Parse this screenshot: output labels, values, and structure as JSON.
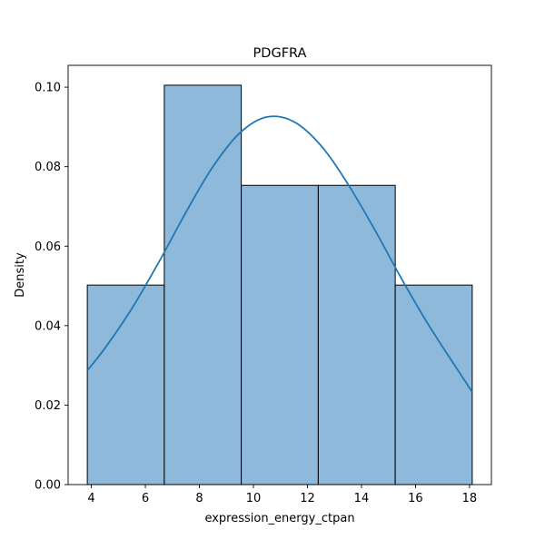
{
  "chart_data": {
    "type": "bar",
    "title": "PDGFRA",
    "xlabel": "expression_energy_ctpan",
    "ylabel": "Density",
    "bins": [
      {
        "start": 3.85,
        "end": 6.7,
        "density": 0.0502
      },
      {
        "start": 6.7,
        "end": 9.55,
        "density": 0.1005
      },
      {
        "start": 9.55,
        "end": 12.4,
        "density": 0.0753
      },
      {
        "start": 12.4,
        "end": 15.25,
        "density": 0.0753
      },
      {
        "start": 15.25,
        "end": 18.1,
        "density": 0.0502
      }
    ],
    "kde": {
      "x": [
        3.85,
        4.5,
        5.5,
        6.5,
        7.5,
        8.5,
        9.5,
        10.5,
        11.5,
        12.5,
        13.5,
        14.5,
        15.5,
        16.5,
        17.5,
        18.1
      ],
      "y": [
        0.0287,
        0.0343,
        0.0443,
        0.056,
        0.0685,
        0.08,
        0.0885,
        0.0925,
        0.0913,
        0.0853,
        0.0756,
        0.064,
        0.0516,
        0.04,
        0.0295,
        0.0233
      ]
    },
    "xlim": [
      3.14,
      18.81
    ],
    "ylim": [
      0,
      0.1055
    ],
    "xticks": [
      4,
      6,
      8,
      10,
      12,
      14,
      16,
      18
    ],
    "xtick_labels": [
      "4",
      "6",
      "8",
      "10",
      "12",
      "14",
      "16",
      "18"
    ],
    "yticks": [
      0,
      0.02,
      0.04,
      0.06,
      0.08,
      0.1
    ],
    "ytick_labels": [
      "0.00",
      "0.02",
      "0.04",
      "0.06",
      "0.08",
      "0.10"
    ],
    "grid": false,
    "colors": {
      "bar_fill": "#8fb9da",
      "bar_edge": "#000000",
      "kde_line": "#1f77b4"
    }
  }
}
